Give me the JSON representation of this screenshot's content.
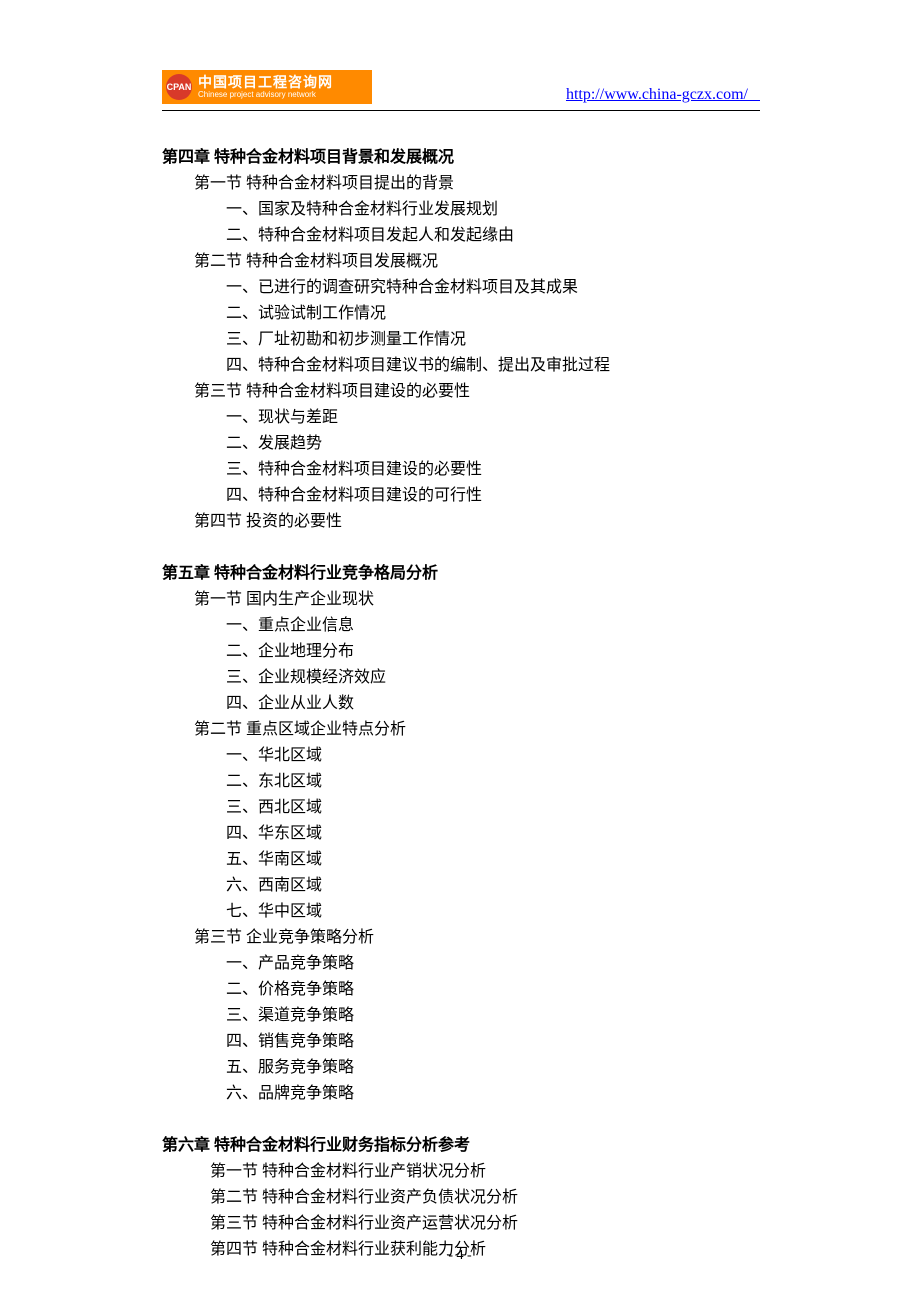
{
  "header": {
    "logo_abbr": "CPAN",
    "logo_cn": "中国项目工程咨询网",
    "logo_en": "Chinese project advisory network",
    "url_text": "http://www.china-gczx.com/   "
  },
  "chapters": [
    {
      "title": "第四章  特种合金材料项目背景和发展概况",
      "sections": [
        {
          "title": "第一节  特种合金材料项目提出的背景",
          "items": [
            "一、国家及特种合金材料行业发展规划",
            "二、特种合金材料项目发起人和发起缘由"
          ]
        },
        {
          "title": "第二节  特种合金材料项目发展概况",
          "items": [
            "一、已进行的调查研究特种合金材料项目及其成果",
            "二、试验试制工作情况",
            "三、厂址初勘和初步测量工作情况",
            "四、特种合金材料项目建议书的编制、提出及审批过程"
          ]
        },
        {
          "title": "第三节  特种合金材料项目建设的必要性",
          "items": [
            "一、现状与差距",
            "二、发展趋势",
            "三、特种合金材料项目建设的必要性",
            "四、特种合金材料项目建设的可行性"
          ]
        },
        {
          "title": "第四节   投资的必要性",
          "items": []
        }
      ]
    },
    {
      "title": "第五章  特种合金材料行业竞争格局分析",
      "sections": [
        {
          "title": "第一节   国内生产企业现状",
          "items": [
            "一、重点企业信息",
            "二、企业地理分布",
            "三、企业规模经济效应",
            "四、企业从业人数"
          ]
        },
        {
          "title": "第二节   重点区域企业特点分析",
          "items": [
            "一、华北区域",
            "二、东北区域",
            "三、西北区域",
            "四、华东区域",
            "五、华南区域",
            "六、西南区域",
            "七、华中区域"
          ]
        },
        {
          "title": "第三节   企业竞争策略分析",
          "items": [
            "一、产品竞争策略",
            "二、价格竞争策略",
            "三、渠道竞争策略",
            "四、销售竞争策略",
            "五、服务竞争策略",
            "六、品牌竞争策略"
          ]
        }
      ]
    },
    {
      "title": "第六章  特种合金材料行业财务指标分析参考",
      "sub_sections": [
        "第一节  特种合金材料行业产销状况分析",
        "第二节  特种合金材料行业资产负债状况分析",
        "第三节  特种合金材料行业资产运营状况分析",
        "第四节  特种合金材料行业获利能力分析"
      ]
    }
  ],
  "page_number": "- 4 -"
}
